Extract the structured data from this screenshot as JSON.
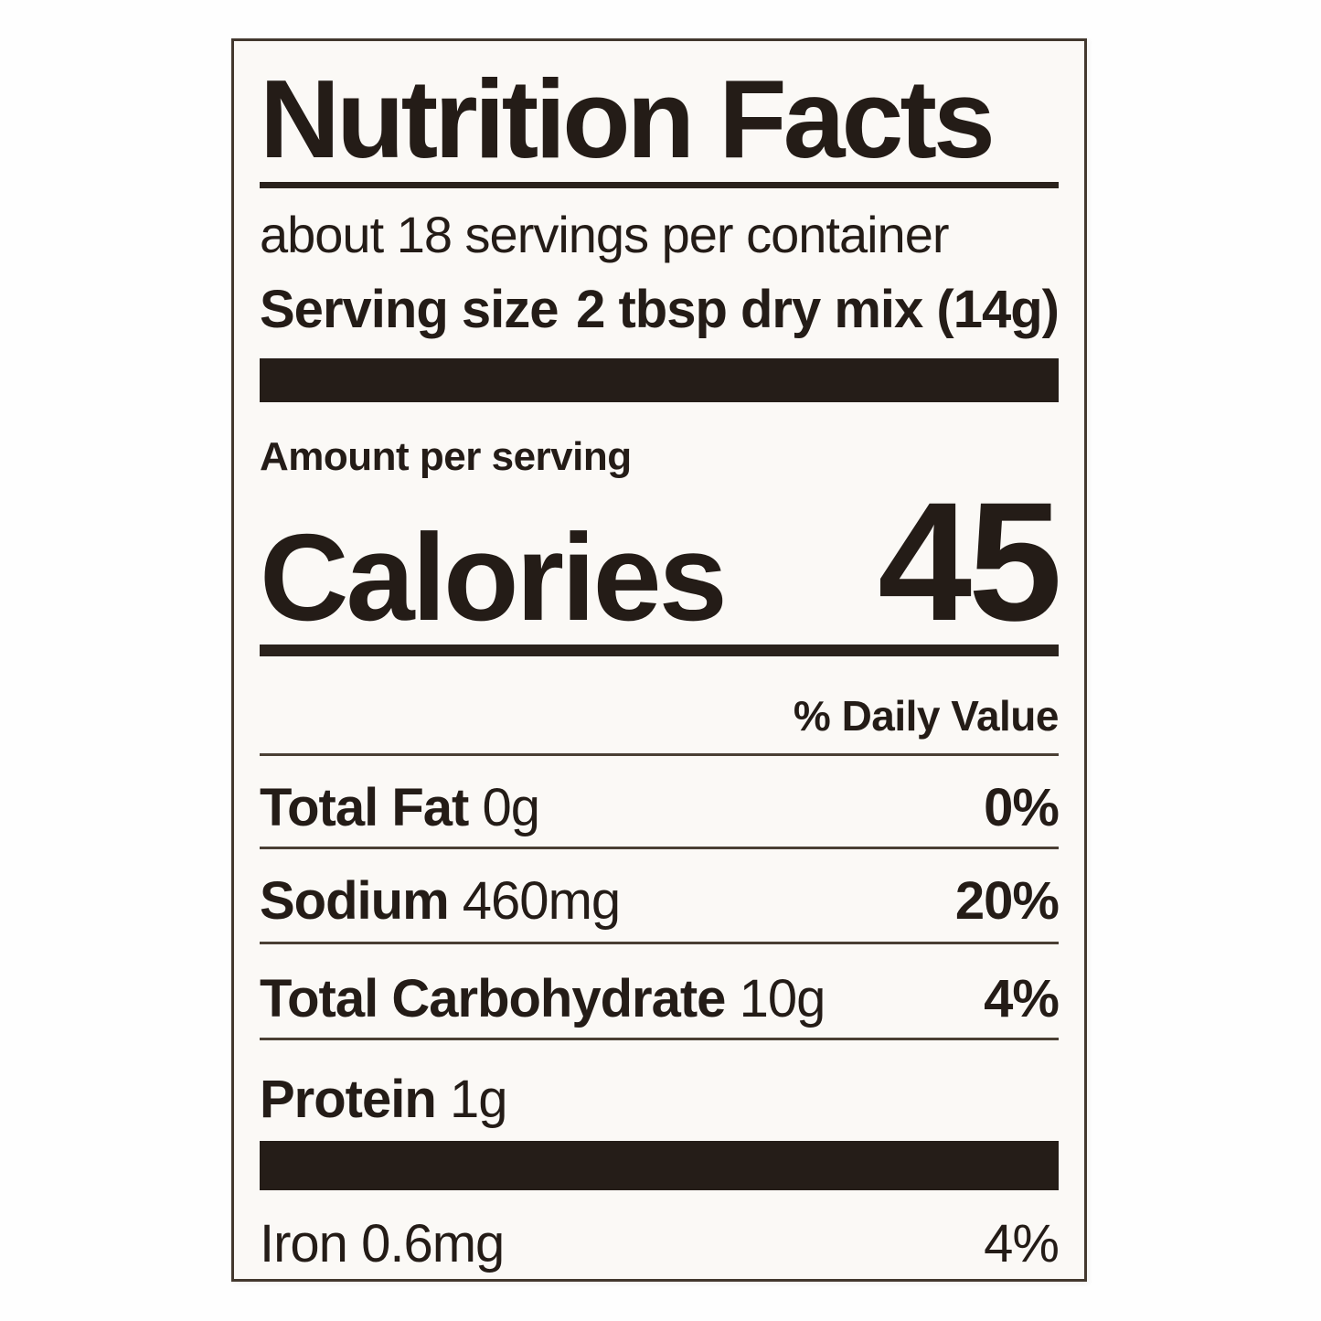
{
  "label": {
    "title": "Nutrition Facts",
    "servings_per_container": "about 18 servings per container",
    "serving_size": {
      "label": "Serving size",
      "value": "2 tbsp dry mix (14g)"
    },
    "amount_per_serving": "Amount per serving",
    "calories": {
      "label": "Calories",
      "value": "45"
    },
    "daily_value_header": "% Daily Value",
    "rows": [
      {
        "name": "Total Fat",
        "amount": "0g",
        "dv": "0%"
      },
      {
        "name": "Sodium",
        "amount": "460mg",
        "dv": "20%"
      },
      {
        "name": "Total Carbohydrate",
        "amount": "10g",
        "dv": "4%"
      },
      {
        "name": "Protein",
        "amount": "1g",
        "dv": ""
      }
    ],
    "minerals": [
      {
        "name": "Iron",
        "amount": "0.6mg",
        "dv": "4%"
      }
    ],
    "colors": {
      "text": "#241c17",
      "thick_bar": "#251d18",
      "label_background": "#fbf9f6",
      "page_background": "#fefefe",
      "border": "#43382e"
    }
  }
}
